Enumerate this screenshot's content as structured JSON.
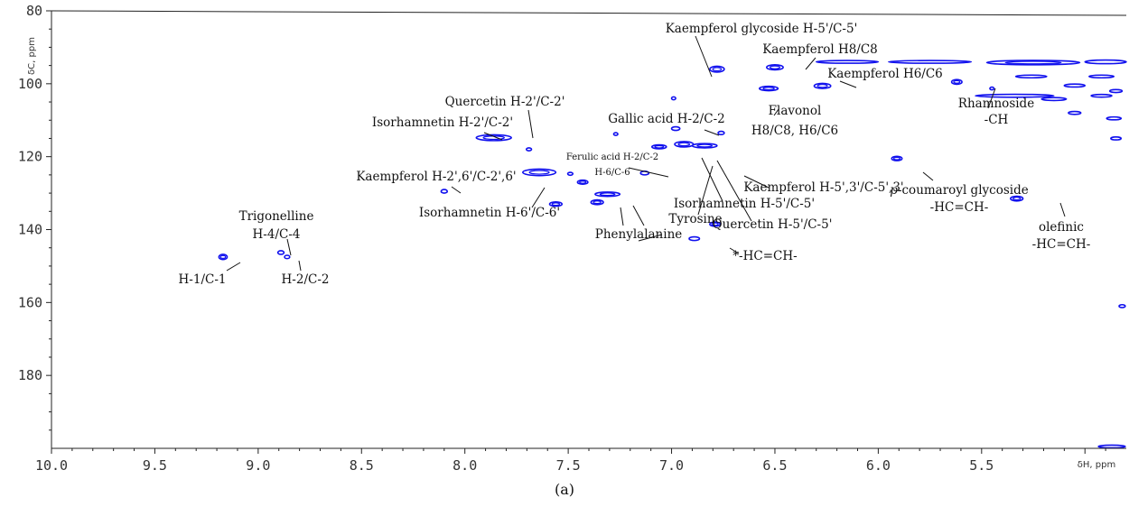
{
  "caption": "(a)",
  "chart_data": {
    "type": "scatter",
    "subtype": "2D NMR HSQC contour spectrum",
    "xlabel": "δH, ppm",
    "ylabel": "δC, ppm",
    "xlim": [
      10.0,
      4.8
    ],
    "ylim": [
      80,
      200
    ],
    "x_axis_reversed": true,
    "y_axis_inverted": true,
    "x_ticks": [
      "10.0",
      "9.5",
      "9.0",
      "8.5",
      "8.0",
      "7.5",
      "7.0",
      "6.5",
      "6.0",
      "5.5"
    ],
    "y_ticks": [
      "80",
      "100",
      "120",
      "140",
      "160",
      "180"
    ],
    "peak_color": "#1010ee",
    "peaks": [
      {
        "x": 9.17,
        "y": 147.5,
        "w": 0.04,
        "h": 1.4
      },
      {
        "x": 8.89,
        "y": 146.3,
        "w": 0.03,
        "h": 1.0
      },
      {
        "x": 8.86,
        "y": 147.5,
        "w": 0.025,
        "h": 0.9
      },
      {
        "x": 8.1,
        "y": 129.5,
        "w": 0.03,
        "h": 1.0
      },
      {
        "x": 7.86,
        "y": 114.8,
        "w": 0.17,
        "h": 1.6
      },
      {
        "x": 7.69,
        "y": 118.0,
        "w": 0.025,
        "h": 0.8
      },
      {
        "x": 7.64,
        "y": 124.3,
        "w": 0.16,
        "h": 1.8
      },
      {
        "x": 7.56,
        "y": 133.0,
        "w": 0.06,
        "h": 1.2
      },
      {
        "x": 7.49,
        "y": 124.7,
        "w": 0.025,
        "h": 0.8
      },
      {
        "x": 7.43,
        "y": 127.0,
        "w": 0.05,
        "h": 1.1
      },
      {
        "x": 7.36,
        "y": 132.5,
        "w": 0.06,
        "h": 1.3
      },
      {
        "x": 7.31,
        "y": 130.3,
        "w": 0.12,
        "h": 1.2
      },
      {
        "x": 7.27,
        "y": 113.8,
        "w": 0.02,
        "h": 0.7
      },
      {
        "x": 7.13,
        "y": 124.5,
        "w": 0.04,
        "h": 1.0
      },
      {
        "x": 7.06,
        "y": 117.3,
        "w": 0.07,
        "h": 1.1
      },
      {
        "x": 6.99,
        "y": 104.0,
        "w": 0.02,
        "h": 0.8
      },
      {
        "x": 6.98,
        "y": 112.3,
        "w": 0.04,
        "h": 1.0
      },
      {
        "x": 6.94,
        "y": 116.6,
        "w": 0.09,
        "h": 1.5
      },
      {
        "x": 6.84,
        "y": 117.0,
        "w": 0.12,
        "h": 1.2
      },
      {
        "x": 6.78,
        "y": 96.0,
        "w": 0.07,
        "h": 1.6
      },
      {
        "x": 6.79,
        "y": 138.5,
        "w": 0.05,
        "h": 1.2
      },
      {
        "x": 6.89,
        "y": 142.5,
        "w": 0.05,
        "h": 1.0
      },
      {
        "x": 6.76,
        "y": 113.5,
        "w": 0.03,
        "h": 0.9
      },
      {
        "x": 6.53,
        "y": 101.3,
        "w": 0.09,
        "h": 1.2
      },
      {
        "x": 6.5,
        "y": 95.5,
        "w": 0.08,
        "h": 1.4
      },
      {
        "x": 6.27,
        "y": 100.6,
        "w": 0.08,
        "h": 1.4
      },
      {
        "x": 5.91,
        "y": 120.5,
        "w": 0.05,
        "h": 1.2
      },
      {
        "x": 5.62,
        "y": 99.5,
        "w": 0.05,
        "h": 1.3
      },
      {
        "x": 5.45,
        "y": 101.3,
        "w": 0.02,
        "h": 0.7
      },
      {
        "x": 5.33,
        "y": 131.5,
        "w": 0.06,
        "h": 1.3
      },
      {
        "x": 6.15,
        "y": 94.0,
        "w": 0.3,
        "h": 0.5
      },
      {
        "x": 5.75,
        "y": 94.0,
        "w": 0.4,
        "h": 0.5
      },
      {
        "x": 5.25,
        "y": 94.2,
        "w": 0.45,
        "h": 1.2
      },
      {
        "x": 4.9,
        "y": 94.0,
        "w": 0.2,
        "h": 1.0
      },
      {
        "x": 5.26,
        "y": 98.0,
        "w": 0.15,
        "h": 0.6
      },
      {
        "x": 4.92,
        "y": 98.0,
        "w": 0.12,
        "h": 0.6
      },
      {
        "x": 5.05,
        "y": 100.5,
        "w": 0.1,
        "h": 0.8
      },
      {
        "x": 4.85,
        "y": 102.0,
        "w": 0.06,
        "h": 0.8
      },
      {
        "x": 5.34,
        "y": 103.3,
        "w": 0.38,
        "h": 0.8
      },
      {
        "x": 5.15,
        "y": 104.2,
        "w": 0.12,
        "h": 0.8
      },
      {
        "x": 4.92,
        "y": 103.3,
        "w": 0.1,
        "h": 0.7
      },
      {
        "x": 5.05,
        "y": 108.0,
        "w": 0.06,
        "h": 0.8
      },
      {
        "x": 4.86,
        "y": 109.5,
        "w": 0.07,
        "h": 0.8
      },
      {
        "x": 4.85,
        "y": 115.0,
        "w": 0.05,
        "h": 0.8
      },
      {
        "x": 4.82,
        "y": 161.0,
        "w": 0.03,
        "h": 0.8
      },
      {
        "x": 4.87,
        "y": 199.5,
        "w": 0.13,
        "h": 0.4
      }
    ],
    "annotations": [
      {
        "lines": [
          "Kaempferol glycoside H-5'/C-5'"
        ]
      },
      {
        "lines": [
          "Kaempferol H8/C8"
        ]
      },
      {
        "lines": [
          "Kaempferol H6/C6"
        ]
      },
      {
        "lines": [
          "Rhamnoside",
          "-CH"
        ]
      },
      {
        "lines": [
          "Quercetin H-2'/C-2'"
        ]
      },
      {
        "lines": [
          "Isorhamnetin H-2'/C-2'"
        ]
      },
      {
        "lines": [
          "Gallic acid H-2/C-2"
        ]
      },
      {
        "lines": [
          "Flavonol",
          "H8/C8, H6/C6"
        ]
      },
      {
        "lines": [
          "Ferulic acid H-2/C-2",
          "H-6/C-6"
        ]
      },
      {
        "lines": [
          "Kaempferol H-5',3'/C-5',3'"
        ]
      },
      {
        "lines": [
          "Kaempferol H-2',6'/C-2',6'"
        ]
      },
      {
        "lines": [
          "Isorhamnetin H-5'/C-5'"
        ]
      },
      {
        "lines": [
          "Quercetin H-5'/C-5'"
        ]
      },
      {
        "lines": [
          "Isorhamnetin H-6'/C-6'"
        ]
      },
      {
        "lines": [
          "Tyrosine"
        ]
      },
      {
        "lines": [
          "Phenylalanine"
        ]
      },
      {
        "lines": [
          "p-coumaroyl glycoside",
          "-HC=CH-"
        ]
      },
      {
        "lines": [
          "olefinic",
          "-HC=CH-"
        ]
      },
      {
        "lines": [
          "Trigonelline",
          "H-4/C-4"
        ]
      },
      {
        "lines": [
          "H-1/C-1"
        ]
      },
      {
        "lines": [
          "H-2/C-2"
        ]
      },
      {
        "lines": [
          "*-HC=CH-"
        ]
      }
    ]
  }
}
